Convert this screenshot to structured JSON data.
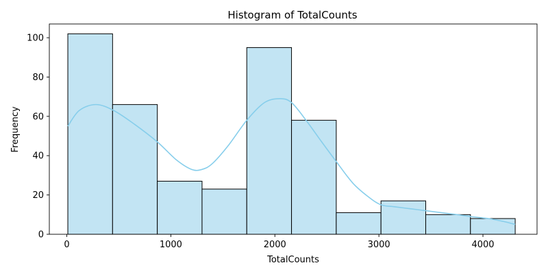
{
  "chart_data": {
    "type": "bar",
    "title": "Histogram of TotalCounts",
    "xlabel": "TotalCounts",
    "ylabel": "Frequency",
    "xlim": [
      -168,
      4520
    ],
    "ylim": [
      0,
      107
    ],
    "xticks": [
      0,
      1000,
      2000,
      3000,
      4000
    ],
    "yticks": [
      0,
      20,
      40,
      60,
      80,
      100
    ],
    "grid": false,
    "legend": "none",
    "bin_edges": [
      10,
      440,
      870,
      1300,
      1730,
      2160,
      2590,
      3020,
      3450,
      3880,
      4310
    ],
    "counts": [
      102,
      66,
      27,
      23,
      95,
      58,
      11,
      17,
      10,
      8
    ],
    "kde": {
      "x": [
        10,
        120,
        280,
        450,
        650,
        870,
        1050,
        1200,
        1300,
        1400,
        1550,
        1730,
        1900,
        2050,
        2160,
        2300,
        2450,
        2590,
        2750,
        2900,
        3020,
        3150,
        3300,
        3450,
        3600,
        3750,
        3880,
        4050,
        4200,
        4310
      ],
      "y": [
        55,
        63,
        66,
        63,
        56,
        47,
        38,
        33,
        33,
        36,
        45,
        58,
        67,
        69,
        67,
        58,
        47,
        37,
        26,
        19,
        15,
        14,
        13,
        12,
        11,
        10,
        9,
        8,
        6.5,
        5
      ]
    },
    "colors": {
      "bar_fill": "#c2e4f3",
      "bar_edge": "#000000",
      "kde_line": "#87ceeb"
    }
  }
}
